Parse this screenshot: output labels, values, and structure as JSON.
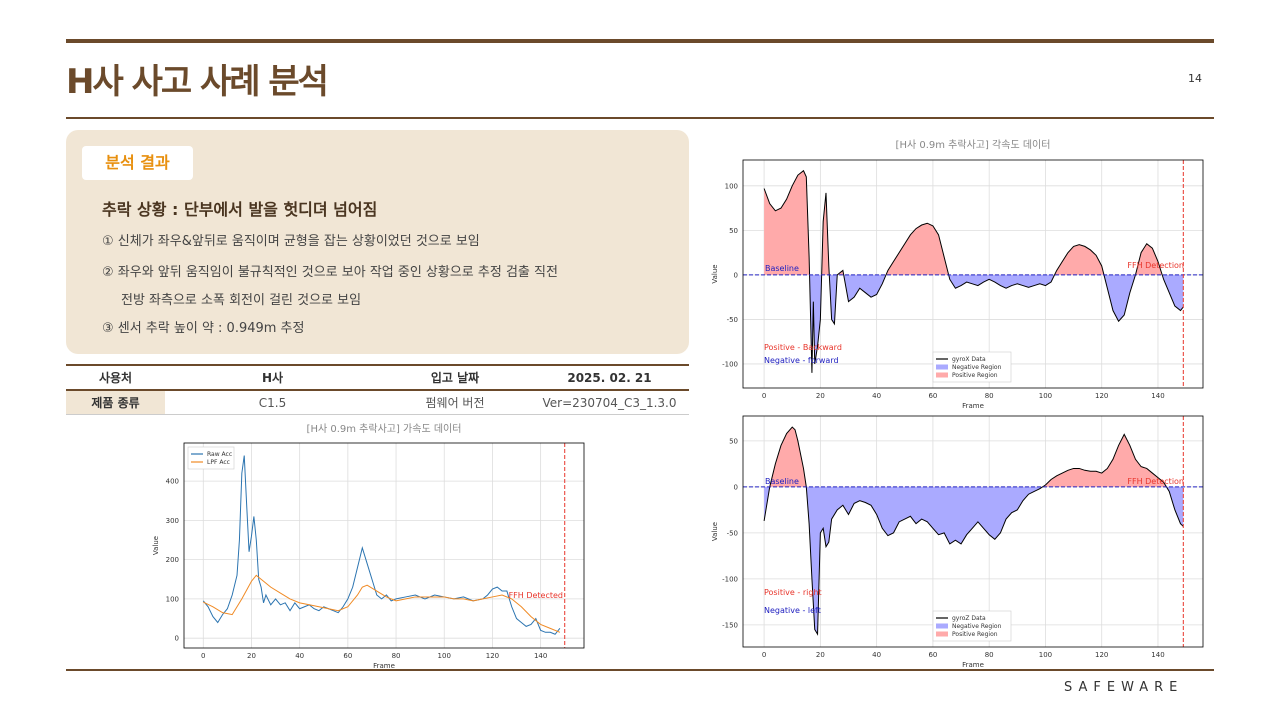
{
  "header": {
    "title": "H사 사고 사례 분석",
    "page": "14"
  },
  "analysis": {
    "badge": "분석 결과",
    "heading": "추락 상황 : 단부에서 발을 헛디뎌 넘어짐",
    "items": [
      "① 신체가 좌우&앞뒤로 움직이며 균형을 잡는 상황이었던 것으로 보임",
      "② 좌우와 앞뒤 움직임이 불규칙적인 것으로 보아 작업 중인 상황으로 추정 검출 직전",
      "전방 좌측으로 소폭 회전이 걸린 것으로 보임",
      "③ 센서 추락 높이 약 : 0.949m 추정"
    ]
  },
  "table": {
    "rows": [
      [
        "사용처",
        "H사",
        "입고 날짜",
        "2025. 02. 21"
      ],
      [
        "제품 종류",
        "C1.5",
        "펌웨어 버전",
        "Ver=230704_C3_1.3.0"
      ]
    ]
  },
  "footer": {
    "brand": "SAFEWARE"
  },
  "chart_data": [
    {
      "type": "line",
      "title": "[H사 0.9m 추락사고] 가속도 데이터",
      "xlabel": "Frame",
      "ylabel": "Value",
      "xlim": [
        -8,
        158
      ],
      "ylim": [
        -25,
        497
      ],
      "xticks": [
        0,
        20,
        40,
        60,
        80,
        100,
        120,
        140
      ],
      "yticks": [
        0,
        100,
        200,
        300,
        400
      ],
      "grid": true,
      "legend": "upper left",
      "marker_x": 150,
      "annotations": [
        {
          "text": "FFH Detected",
          "color": "#e8352b"
        }
      ],
      "series": [
        {
          "name": "Raw Acc",
          "color": "#2b74b0",
          "x": [
            0,
            2,
            4,
            6,
            8,
            10,
            12,
            14,
            15,
            16,
            17,
            18,
            19,
            20,
            21,
            22,
            23,
            24,
            25,
            26,
            28,
            30,
            32,
            34,
            36,
            38,
            40,
            42,
            44,
            46,
            48,
            50,
            52,
            54,
            56,
            58,
            60,
            62,
            64,
            66,
            68,
            70,
            72,
            74,
            76,
            78,
            80,
            84,
            88,
            92,
            96,
            100,
            104,
            108,
            112,
            116,
            118,
            120,
            122,
            124,
            126,
            128,
            130,
            132,
            134,
            136,
            138,
            140,
            142,
            144,
            146,
            148
          ],
          "values": [
            95,
            80,
            55,
            40,
            60,
            75,
            110,
            160,
            250,
            420,
            465,
            340,
            220,
            260,
            310,
            250,
            150,
            130,
            90,
            110,
            85,
            100,
            85,
            90,
            70,
            90,
            75,
            80,
            85,
            75,
            70,
            80,
            75,
            70,
            65,
            80,
            100,
            130,
            180,
            230,
            190,
            150,
            110,
            100,
            110,
            95,
            100,
            105,
            110,
            100,
            110,
            105,
            100,
            105,
            95,
            100,
            110,
            125,
            130,
            120,
            120,
            80,
            50,
            40,
            30,
            35,
            50,
            20,
            15,
            15,
            10,
            25
          ]
        },
        {
          "name": "LPF Acc",
          "color": "#f08a24",
          "x": [
            0,
            4,
            8,
            12,
            16,
            20,
            22,
            24,
            28,
            32,
            36,
            40,
            44,
            48,
            52,
            56,
            60,
            64,
            66,
            68,
            72,
            76,
            80,
            84,
            88,
            92,
            96,
            100,
            104,
            108,
            112,
            116,
            120,
            124,
            128,
            132,
            136,
            140,
            144,
            148
          ],
          "values": [
            92,
            80,
            65,
            60,
            100,
            145,
            160,
            150,
            130,
            115,
            100,
            90,
            85,
            80,
            75,
            70,
            80,
            110,
            130,
            135,
            120,
            105,
            95,
            100,
            105,
            105,
            105,
            105,
            100,
            100,
            95,
            100,
            105,
            110,
            100,
            80,
            55,
            35,
            25,
            15
          ]
        }
      ]
    },
    {
      "type": "line",
      "title": "[H사 0.9m 추락사고] 각속도 데이터",
      "xlabel": "Frame",
      "ylabel": "Value",
      "xlim": [
        -7.5,
        156
      ],
      "ylim": [
        -127,
        129
      ],
      "xticks": [
        0,
        20,
        40,
        60,
        80,
        100,
        120,
        140
      ],
      "yticks": [
        -100,
        -50,
        0,
        50,
        100
      ],
      "grid": true,
      "legend": "lower center",
      "baseline": 0,
      "marker_x": 149,
      "annotations": [
        {
          "text": "Baseline",
          "color": "#2020c0"
        },
        {
          "text": "FFH Detection",
          "color": "#e8352b"
        },
        {
          "text": "Positive - Backward",
          "color": "#e8352b"
        },
        {
          "text": "Negative - forward",
          "color": "#2020c0"
        }
      ],
      "regions": [
        {
          "name": "Negative Region",
          "color": "#aaaaff"
        },
        {
          "name": "Positive Region",
          "color": "#ffaaaa"
        }
      ],
      "series": [
        {
          "name": "gyroX Data",
          "color": "#000000",
          "x": [
            0,
            2,
            4,
            6,
            8,
            10,
            12,
            14,
            15,
            16,
            17,
            17.5,
            18,
            19,
            20,
            21,
            22,
            23,
            24,
            25,
            26,
            28,
            30,
            32,
            34,
            36,
            38,
            40,
            42,
            44,
            46,
            48,
            50,
            52,
            54,
            56,
            58,
            60,
            62,
            64,
            66,
            68,
            70,
            72,
            74,
            76,
            78,
            80,
            82,
            84,
            86,
            88,
            90,
            92,
            94,
            96,
            98,
            100,
            102,
            104,
            106,
            108,
            110,
            112,
            114,
            116,
            118,
            120,
            122,
            124,
            126,
            128,
            130,
            132,
            134,
            136,
            138,
            140,
            142,
            144,
            146,
            148,
            149
          ],
          "values": [
            97,
            80,
            72,
            75,
            85,
            100,
            112,
            117,
            110,
            20,
            -110,
            -30,
            -100,
            -80,
            -50,
            60,
            92,
            10,
            -50,
            -55,
            0,
            5,
            -30,
            -25,
            -15,
            -20,
            -25,
            -22,
            -10,
            5,
            15,
            25,
            35,
            45,
            52,
            56,
            58,
            55,
            45,
            20,
            -5,
            -15,
            -12,
            -8,
            -10,
            -12,
            -8,
            -5,
            -8,
            -12,
            -15,
            -12,
            -10,
            -12,
            -14,
            -12,
            -10,
            -12,
            -8,
            5,
            15,
            25,
            32,
            34,
            32,
            28,
            22,
            10,
            -15,
            -40,
            -52,
            -45,
            -20,
            0,
            25,
            35,
            30,
            15,
            -5,
            -20,
            -35,
            -40,
            -36
          ]
        }
      ]
    },
    {
      "type": "line",
      "title": "",
      "xlabel": "Frame",
      "ylabel": "Value",
      "xlim": [
        -7.5,
        156
      ],
      "ylim": [
        -174,
        77
      ],
      "xticks": [
        0,
        20,
        40,
        60,
        80,
        100,
        120,
        140
      ],
      "yticks": [
        -150,
        -100,
        -50,
        0,
        50
      ],
      "grid": true,
      "legend": "lower center",
      "baseline": 0,
      "marker_x": 149,
      "annotations": [
        {
          "text": "Baseline",
          "color": "#2020c0"
        },
        {
          "text": "FFH Detection",
          "color": "#e8352b"
        },
        {
          "text": "Positive - right",
          "color": "#e8352b"
        },
        {
          "text": "Negative - left",
          "color": "#2020c0"
        }
      ],
      "regions": [
        {
          "name": "Negative Region",
          "color": "#aaaaff"
        },
        {
          "name": "Positive Region",
          "color": "#ffaaaa"
        }
      ],
      "series": [
        {
          "name": "gyroZ Data",
          "color": "#000000",
          "x": [
            0,
            2,
            4,
            6,
            8,
            10,
            11,
            12,
            14,
            15,
            16,
            17,
            18,
            19,
            20,
            21,
            22,
            23,
            24,
            26,
            28,
            30,
            32,
            34,
            36,
            38,
            40,
            42,
            44,
            46,
            48,
            50,
            52,
            54,
            56,
            58,
            60,
            62,
            64,
            66,
            68,
            70,
            72,
            74,
            76,
            78,
            80,
            82,
            84,
            86,
            88,
            90,
            92,
            94,
            96,
            98,
            100,
            102,
            104,
            106,
            108,
            110,
            112,
            114,
            116,
            118,
            120,
            122,
            124,
            126,
            128,
            130,
            132,
            134,
            136,
            138,
            140,
            142,
            144,
            146,
            148,
            149
          ],
          "values": [
            -37,
            0,
            25,
            45,
            58,
            65,
            62,
            50,
            20,
            0,
            -40,
            -100,
            -155,
            -160,
            -50,
            -45,
            -65,
            -60,
            -35,
            -25,
            -20,
            -30,
            -18,
            -15,
            -17,
            -20,
            -30,
            -45,
            -53,
            -50,
            -38,
            -35,
            -32,
            -40,
            -35,
            -38,
            -45,
            -52,
            -50,
            -62,
            -58,
            -62,
            -52,
            -45,
            -38,
            -45,
            -52,
            -57,
            -50,
            -35,
            -28,
            -25,
            -15,
            -8,
            -5,
            -2,
            2,
            8,
            12,
            15,
            18,
            20,
            20,
            18,
            17,
            17,
            15,
            20,
            30,
            45,
            57,
            45,
            30,
            22,
            20,
            15,
            10,
            5,
            -5,
            -25,
            -40,
            -43
          ]
        }
      ]
    }
  ]
}
